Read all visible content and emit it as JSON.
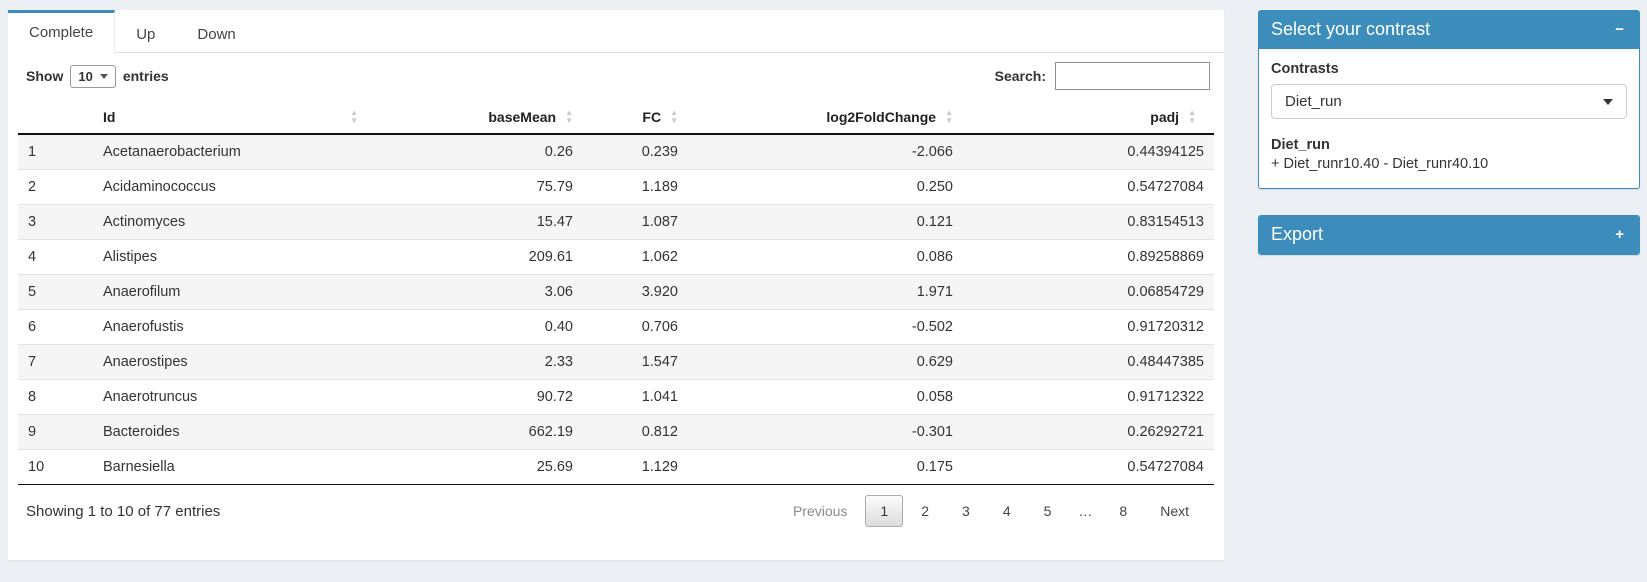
{
  "tabs": [
    {
      "label": "Complete",
      "active": true
    },
    {
      "label": "Up",
      "active": false
    },
    {
      "label": "Down",
      "active": false
    }
  ],
  "length_control": {
    "prefix": "Show",
    "value": "10",
    "suffix": "entries"
  },
  "search": {
    "label": "Search:",
    "value": ""
  },
  "table": {
    "columns": [
      {
        "label": "Id"
      },
      {
        "label": "baseMean"
      },
      {
        "label": "FC"
      },
      {
        "label": "log2FoldChange"
      },
      {
        "label": "padj"
      }
    ],
    "rows": [
      {
        "n": "1",
        "id": "Acetanaerobacterium",
        "baseMean": "0.26",
        "fc": "0.239",
        "log2fc": "-2.066",
        "padj": "0.44394125"
      },
      {
        "n": "2",
        "id": "Acidaminococcus",
        "baseMean": "75.79",
        "fc": "1.189",
        "log2fc": "0.250",
        "padj": "0.54727084"
      },
      {
        "n": "3",
        "id": "Actinomyces",
        "baseMean": "15.47",
        "fc": "1.087",
        "log2fc": "0.121",
        "padj": "0.83154513"
      },
      {
        "n": "4",
        "id": "Alistipes",
        "baseMean": "209.61",
        "fc": "1.062",
        "log2fc": "0.086",
        "padj": "0.89258869"
      },
      {
        "n": "5",
        "id": "Anaerofilum",
        "baseMean": "3.06",
        "fc": "3.920",
        "log2fc": "1.971",
        "padj": "0.06854729"
      },
      {
        "n": "6",
        "id": "Anaerofustis",
        "baseMean": "0.40",
        "fc": "0.706",
        "log2fc": "-0.502",
        "padj": "0.91720312"
      },
      {
        "n": "7",
        "id": "Anaerostipes",
        "baseMean": "2.33",
        "fc": "1.547",
        "log2fc": "0.629",
        "padj": "0.48447385"
      },
      {
        "n": "8",
        "id": "Anaerotruncus",
        "baseMean": "90.72",
        "fc": "1.041",
        "log2fc": "0.058",
        "padj": "0.91712322"
      },
      {
        "n": "9",
        "id": "Bacteroides",
        "baseMean": "662.19",
        "fc": "0.812",
        "log2fc": "-0.301",
        "padj": "0.26292721"
      },
      {
        "n": "10",
        "id": "Barnesiella",
        "baseMean": "25.69",
        "fc": "1.129",
        "log2fc": "0.175",
        "padj": "0.54727084"
      }
    ]
  },
  "footer": {
    "info": "Showing 1 to 10 of 77 entries",
    "pagination": {
      "previous": "Previous",
      "pages": [
        "1",
        "2",
        "3",
        "4",
        "5",
        "…",
        "8"
      ],
      "current": "1",
      "next": "Next"
    }
  },
  "contrast_box": {
    "title": "Select your contrast",
    "collapse_icon": "−",
    "contrasts_label": "Contrasts",
    "selected_contrast": "Diet_run",
    "detail_title": "Diet_run",
    "detail_text": "+ Diet_runr10.40 - Diet_runr40.10"
  },
  "export_box": {
    "title": "Export",
    "collapse_icon": "+"
  },
  "colors": {
    "primary": "#3c8dbc",
    "page_background": "#ecf0f5"
  }
}
